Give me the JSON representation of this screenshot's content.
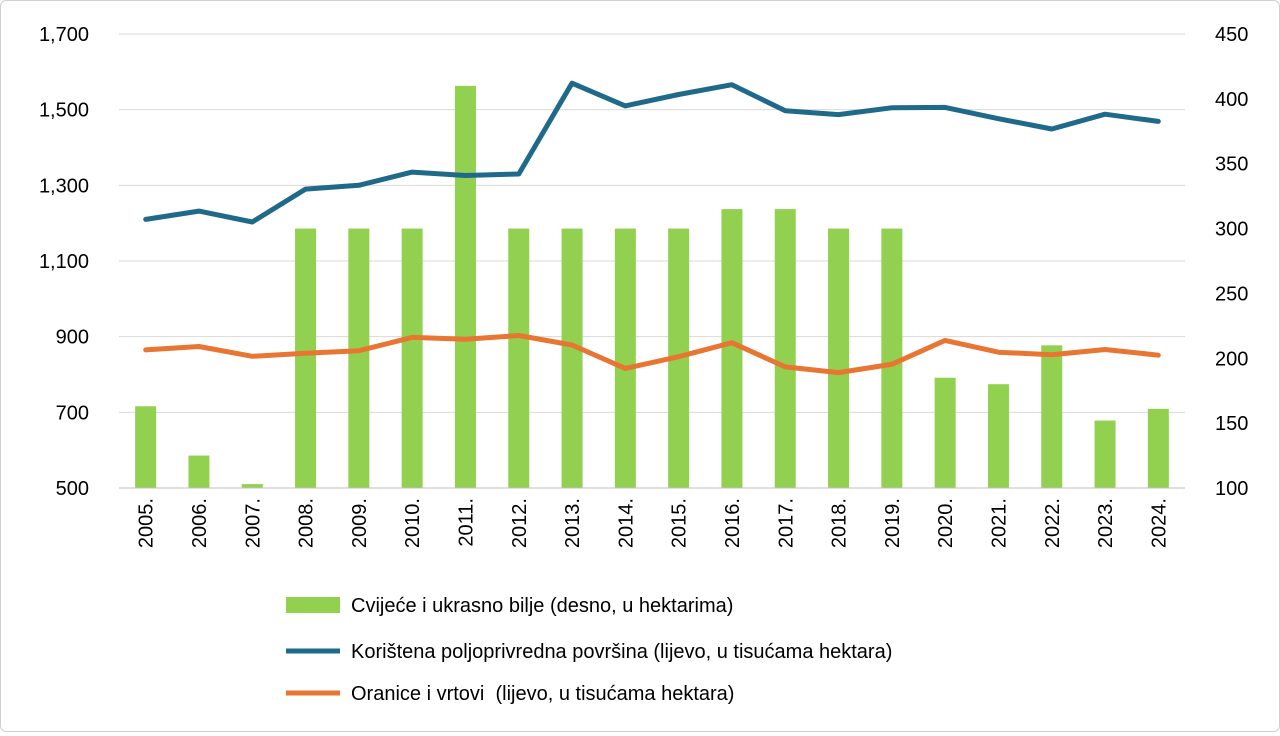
{
  "chart_data": {
    "type": "bar+line",
    "categories": [
      "2005.",
      "2006.",
      "2007.",
      "2008.",
      "2009.",
      "2010.",
      "2011.",
      "2012.",
      "2013.",
      "2014.",
      "2015.",
      "2016.",
      "2017.",
      "2018.",
      "2019.",
      "2020.",
      "2021.",
      "2022.",
      "2023.",
      "2024."
    ],
    "left_axis": {
      "min": 500,
      "max": 1700,
      "ticks": [
        "500",
        "700",
        "900",
        "1,100",
        "1,300",
        "1,500",
        "1,700"
      ],
      "tick_values": [
        500,
        700,
        900,
        1100,
        1300,
        1500,
        1700
      ]
    },
    "right_axis": {
      "min": 100,
      "max": 450,
      "ticks": [
        "100",
        "150",
        "200",
        "250",
        "300",
        "350",
        "400",
        "450"
      ],
      "tick_values": [
        100,
        150,
        200,
        250,
        300,
        350,
        400,
        450
      ]
    },
    "grid": true,
    "series": [
      {
        "name": "Cvijeće i ukrasno bilje (desno, u hektarima)",
        "type": "bar",
        "axis": "right",
        "color": "#92D050",
        "values": [
          163,
          125,
          103,
          300,
          300,
          300,
          410,
          300,
          300,
          300,
          300,
          315,
          315,
          300,
          300,
          185,
          180,
          210,
          152,
          161
        ]
      },
      {
        "name": "Korištena poljoprivredna površina (lijevo, u tisućama hektara)",
        "type": "line",
        "axis": "left",
        "color": "#1F6A8A",
        "values": [
          1210,
          1232,
          1203,
          1290,
          1300,
          1335,
          1326,
          1330,
          1570,
          1510,
          1540,
          1566,
          1497,
          1487,
          1505,
          1506,
          1476,
          1449,
          1488,
          1469
        ]
      },
      {
        "name": "Oranice i vrtovi  (lijevo, u tisućama hektara)",
        "type": "line",
        "axis": "left",
        "color": "#E87532",
        "values": [
          865,
          874,
          848,
          856,
          863,
          898,
          893,
          903,
          878,
          816,
          847,
          884,
          820,
          805,
          827,
          890,
          859,
          852,
          866,
          851
        ]
      }
    ],
    "legend_position": "bottom-center"
  }
}
